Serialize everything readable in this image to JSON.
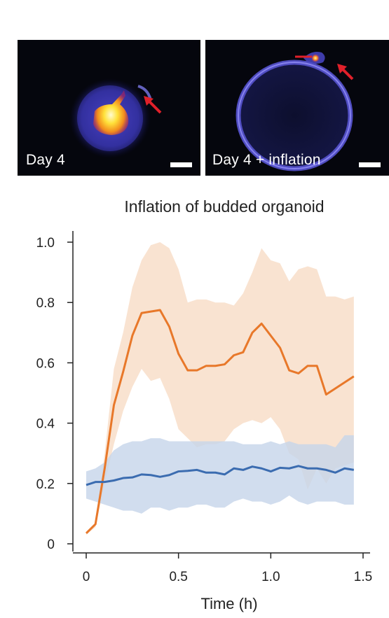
{
  "panels": [
    {
      "label": "Day 4",
      "arrow_color": "#e0202a"
    },
    {
      "label": "Day 4 + inflation",
      "arrow_color": "#e0202a"
    }
  ],
  "chart_data": {
    "type": "line",
    "title": "Inflation of budded organoid",
    "xlabel": "Time (h)",
    "ylabel": "",
    "xlim": [
      0,
      1.5
    ],
    "ylim": [
      0,
      1.0
    ],
    "xticks": [
      0,
      0.5,
      1.0,
      1.5
    ],
    "xtick_labels": [
      "0",
      "0.5",
      "1.0",
      "1.5"
    ],
    "yticks": [
      0,
      0.2,
      0.4,
      0.6,
      0.8,
      1.0
    ],
    "ytick_labels": [
      "0",
      "0.2",
      "0.4",
      "0.6",
      "0.8",
      "1.0"
    ],
    "grid": false,
    "x": [
      0,
      0.05,
      0.1,
      0.15,
      0.2,
      0.25,
      0.3,
      0.35,
      0.4,
      0.45,
      0.5,
      0.55,
      0.6,
      0.65,
      0.7,
      0.75,
      0.8,
      0.85,
      0.9,
      0.95,
      1.0,
      1.05,
      1.1,
      1.15,
      1.2,
      1.25,
      1.3,
      1.35,
      1.4,
      1.45
    ],
    "series": [
      {
        "color": "#e8782a",
        "band_color": "#f8dcc6",
        "values": [
          0.035,
          0.065,
          0.25,
          0.46,
          0.57,
          0.69,
          0.765,
          0.77,
          0.775,
          0.72,
          0.63,
          0.575,
          0.575,
          0.59,
          0.59,
          0.595,
          0.625,
          0.635,
          0.7,
          0.73,
          0.69,
          0.65,
          0.575,
          0.565,
          0.59,
          0.59,
          0.495,
          0.515,
          0.535,
          0.555
        ],
        "upper": [
          0.04,
          0.07,
          0.3,
          0.58,
          0.7,
          0.85,
          0.94,
          0.99,
          1.0,
          0.98,
          0.91,
          0.8,
          0.81,
          0.81,
          0.8,
          0.8,
          0.79,
          0.83,
          0.9,
          0.98,
          0.94,
          0.93,
          0.87,
          0.91,
          0.92,
          0.91,
          0.82,
          0.82,
          0.81,
          0.82
        ],
        "lower": [
          0.03,
          0.055,
          0.2,
          0.33,
          0.44,
          0.52,
          0.58,
          0.54,
          0.55,
          0.48,
          0.38,
          0.35,
          0.32,
          0.33,
          0.33,
          0.34,
          0.38,
          0.4,
          0.41,
          0.4,
          0.42,
          0.38,
          0.3,
          0.28,
          0.18,
          0.25,
          0.2,
          0.25,
          0.26,
          0.27
        ]
      },
      {
        "color": "#3b6cb0",
        "band_color": "#c5d5ea",
        "values": [
          0.195,
          0.205,
          0.205,
          0.21,
          0.218,
          0.22,
          0.23,
          0.228,
          0.222,
          0.228,
          0.24,
          0.242,
          0.245,
          0.236,
          0.236,
          0.23,
          0.25,
          0.245,
          0.256,
          0.25,
          0.24,
          0.252,
          0.25,
          0.258,
          0.25,
          0.25,
          0.245,
          0.236,
          0.25,
          0.245
        ],
        "upper": [
          0.24,
          0.25,
          0.27,
          0.31,
          0.33,
          0.34,
          0.34,
          0.35,
          0.35,
          0.34,
          0.34,
          0.34,
          0.34,
          0.34,
          0.34,
          0.34,
          0.34,
          0.33,
          0.33,
          0.33,
          0.34,
          0.33,
          0.34,
          0.33,
          0.33,
          0.33,
          0.33,
          0.32,
          0.36,
          0.36
        ],
        "lower": [
          0.15,
          0.14,
          0.13,
          0.12,
          0.11,
          0.11,
          0.1,
          0.12,
          0.12,
          0.11,
          0.12,
          0.12,
          0.13,
          0.13,
          0.12,
          0.12,
          0.14,
          0.15,
          0.14,
          0.14,
          0.13,
          0.14,
          0.16,
          0.14,
          0.13,
          0.14,
          0.14,
          0.14,
          0.13,
          0.13
        ]
      }
    ]
  }
}
